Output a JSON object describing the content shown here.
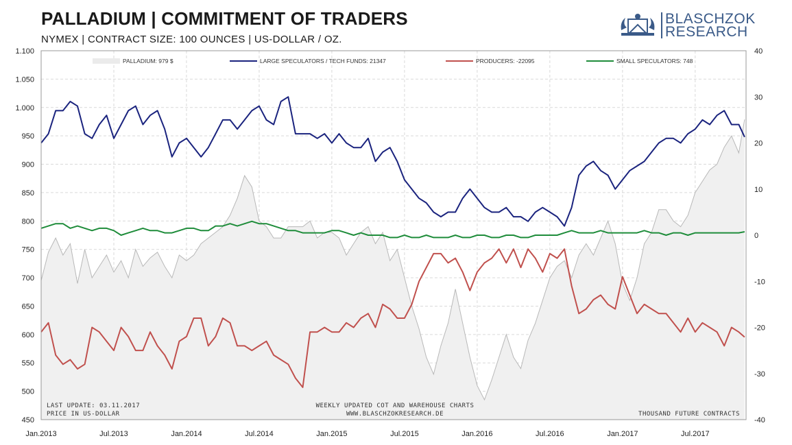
{
  "header": {
    "title": "PALLADIUM  | COMMITMENT OF TRADERS",
    "subtitle": "NYMEX  |  CONTRACT SIZE: 100 OUNCES  |  US-DOLLAR / OZ."
  },
  "logo": {
    "line1": "BLASCHZOK",
    "line2": "RESEARCH",
    "color": "#3a5a88"
  },
  "footer": {
    "left_line1": "LAST UPDATE: 03.11.2017",
    "left_line2": "PRICE IN US-DOLLAR",
    "center_line1": "WEEKLY  UPDATED  COT  AND  WAREHOUSE  CHARTS",
    "center_line2": "WWW.BLASCHZOKRESEARCH.DE",
    "right": "THOUSAND  FUTURE CONTRACTS"
  },
  "chart_data": {
    "type": "line",
    "x_ticks": [
      "Jan.2013",
      "Jul.2013",
      "Jan.2014",
      "Jul.2014",
      "Jan.2015",
      "Jul.2015",
      "Jan.2016",
      "Jul.2016",
      "Jan.2017",
      "Jul.2017"
    ],
    "y_left": {
      "min": 450,
      "max": 1100,
      "ticks": [
        "1.100",
        "1.050",
        "1.000",
        "950",
        "900",
        "850",
        "800",
        "750",
        "700",
        "650",
        "600",
        "550",
        "500",
        "450"
      ]
    },
    "y_right": {
      "min": -40,
      "max": 40,
      "ticks": [
        "40",
        "30",
        "20",
        "10",
        "0",
        "-10",
        "-20",
        "-30",
        "-40"
      ]
    },
    "grid": true,
    "legend_position": "top",
    "series": [
      {
        "name": "PALLADIUM: 979 $",
        "axis": "left",
        "style": "area",
        "color": "#f0f0f0",
        "stroke": "#b8b8b8",
        "t": [
          2013.0,
          2013.05,
          2013.1,
          2013.15,
          2013.2,
          2013.25,
          2013.3,
          2013.35,
          2013.4,
          2013.45,
          2013.5,
          2013.55,
          2013.6,
          2013.65,
          2013.7,
          2013.75,
          2013.8,
          2013.85,
          2013.9,
          2013.95,
          2014.0,
          2014.05,
          2014.1,
          2014.15,
          2014.2,
          2014.25,
          2014.3,
          2014.35,
          2014.4,
          2014.45,
          2014.5,
          2014.55,
          2014.6,
          2014.65,
          2014.7,
          2014.75,
          2014.8,
          2014.85,
          2014.9,
          2014.95,
          2015.0,
          2015.05,
          2015.1,
          2015.15,
          2015.2,
          2015.25,
          2015.3,
          2015.35,
          2015.4,
          2015.45,
          2015.5,
          2015.55,
          2015.6,
          2015.65,
          2015.7,
          2015.75,
          2015.8,
          2015.85,
          2015.9,
          2015.95,
          2016.0,
          2016.05,
          2016.1,
          2016.15,
          2016.2,
          2016.25,
          2016.3,
          2016.35,
          2016.4,
          2016.45,
          2016.5,
          2016.55,
          2016.6,
          2016.65,
          2016.7,
          2016.75,
          2016.8,
          2016.85,
          2016.9,
          2016.95,
          2017.0,
          2017.05,
          2017.1,
          2017.15,
          2017.2,
          2017.25,
          2017.3,
          2017.35,
          2017.4,
          2017.45,
          2017.5,
          2017.55,
          2017.6,
          2017.65,
          2017.7,
          2017.75,
          2017.8,
          2017.84
        ],
        "values": [
          695,
          745,
          770,
          740,
          760,
          690,
          750,
          700,
          720,
          740,
          710,
          730,
          700,
          750,
          720,
          735,
          745,
          720,
          700,
          740,
          730,
          740,
          760,
          770,
          780,
          790,
          810,
          840,
          880,
          860,
          800,
          790,
          770,
          770,
          790,
          790,
          790,
          800,
          770,
          780,
          780,
          770,
          740,
          760,
          780,
          790,
          760,
          780,
          730,
          750,
          700,
          650,
          610,
          560,
          530,
          580,
          620,
          680,
          620,
          560,
          510,
          485,
          520,
          560,
          600,
          560,
          540,
          590,
          620,
          660,
          700,
          720,
          730,
          700,
          740,
          760,
          740,
          770,
          800,
          760,
          690,
          660,
          700,
          760,
          780,
          820,
          820,
          800,
          790,
          810,
          850,
          870,
          890,
          900,
          930,
          950,
          920,
          979
        ]
      },
      {
        "name": "LARGE SPECULATORS / TECH FUNDS:  21347",
        "axis": "right",
        "style": "line",
        "color": "#1a237e",
        "t": [
          2013.0,
          2013.05,
          2013.1,
          2013.15,
          2013.2,
          2013.25,
          2013.3,
          2013.35,
          2013.4,
          2013.45,
          2013.5,
          2013.55,
          2013.6,
          2013.65,
          2013.7,
          2013.75,
          2013.8,
          2013.85,
          2013.9,
          2013.95,
          2014.0,
          2014.05,
          2014.1,
          2014.15,
          2014.2,
          2014.25,
          2014.3,
          2014.35,
          2014.4,
          2014.45,
          2014.5,
          2014.55,
          2014.6,
          2014.65,
          2014.7,
          2014.75,
          2014.8,
          2014.85,
          2014.9,
          2014.95,
          2015.0,
          2015.05,
          2015.1,
          2015.15,
          2015.2,
          2015.25,
          2015.3,
          2015.35,
          2015.4,
          2015.45,
          2015.5,
          2015.55,
          2015.6,
          2015.65,
          2015.7,
          2015.75,
          2015.8,
          2015.85,
          2015.9,
          2015.95,
          2016.0,
          2016.05,
          2016.1,
          2016.15,
          2016.2,
          2016.25,
          2016.3,
          2016.35,
          2016.4,
          2016.45,
          2016.5,
          2016.55,
          2016.6,
          2016.65,
          2016.7,
          2016.75,
          2016.8,
          2016.85,
          2016.9,
          2016.95,
          2017.0,
          2017.05,
          2017.1,
          2017.15,
          2017.2,
          2017.25,
          2017.3,
          2017.35,
          2017.4,
          2017.45,
          2017.5,
          2017.55,
          2017.6,
          2017.65,
          2017.7,
          2017.75,
          2017.8,
          2017.84
        ],
        "values": [
          20,
          22,
          27,
          27,
          29,
          28,
          22,
          21,
          24,
          26,
          21,
          24,
          27,
          28,
          24,
          26,
          27,
          23,
          17,
          20,
          21,
          19,
          17,
          19,
          22,
          25,
          25,
          23,
          25,
          27,
          28,
          25,
          24,
          29,
          30,
          22,
          22,
          22,
          21,
          22,
          20,
          22,
          20,
          19,
          19,
          21,
          16,
          18,
          19,
          16,
          12,
          10,
          8,
          7,
          5,
          4,
          5,
          5,
          8,
          10,
          8,
          6,
          5,
          5,
          6,
          4,
          4,
          3,
          5,
          6,
          5,
          4,
          2,
          6,
          13,
          15,
          16,
          14,
          13,
          10,
          12,
          14,
          15,
          16,
          18,
          20,
          21,
          21,
          20,
          22,
          23,
          25,
          24,
          26,
          27,
          24,
          24,
          21.3
        ]
      },
      {
        "name": "PRODUCERS: -22095",
        "axis": "right",
        "style": "line",
        "color": "#c0504d",
        "t": [
          2013.0,
          2013.05,
          2013.1,
          2013.15,
          2013.2,
          2013.25,
          2013.3,
          2013.35,
          2013.4,
          2013.45,
          2013.5,
          2013.55,
          2013.6,
          2013.65,
          2013.7,
          2013.75,
          2013.8,
          2013.85,
          2013.9,
          2013.95,
          2014.0,
          2014.05,
          2014.1,
          2014.15,
          2014.2,
          2014.25,
          2014.3,
          2014.35,
          2014.4,
          2014.45,
          2014.5,
          2014.55,
          2014.6,
          2014.65,
          2014.7,
          2014.75,
          2014.8,
          2014.85,
          2014.9,
          2014.95,
          2015.0,
          2015.05,
          2015.1,
          2015.15,
          2015.2,
          2015.25,
          2015.3,
          2015.35,
          2015.4,
          2015.45,
          2015.5,
          2015.55,
          2015.6,
          2015.65,
          2015.7,
          2015.75,
          2015.8,
          2015.85,
          2015.9,
          2015.95,
          2016.0,
          2016.05,
          2016.1,
          2016.15,
          2016.2,
          2016.25,
          2016.3,
          2016.35,
          2016.4,
          2016.45,
          2016.5,
          2016.55,
          2016.6,
          2016.65,
          2016.7,
          2016.75,
          2016.8,
          2016.85,
          2016.9,
          2016.95,
          2017.0,
          2017.05,
          2017.1,
          2017.15,
          2017.2,
          2017.25,
          2017.3,
          2017.35,
          2017.4,
          2017.45,
          2017.5,
          2017.55,
          2017.6,
          2017.65,
          2017.7,
          2017.75,
          2017.8,
          2017.84
        ],
        "values": [
          -21,
          -19,
          -26,
          -28,
          -27,
          -29,
          -28,
          -20,
          -21,
          -23,
          -25,
          -20,
          -22,
          -25,
          -25,
          -21,
          -24,
          -26,
          -29,
          -23,
          -22,
          -18,
          -18,
          -24,
          -22,
          -18,
          -19,
          -24,
          -24,
          -25,
          -24,
          -23,
          -26,
          -27,
          -28,
          -31,
          -33,
          -21,
          -21,
          -20,
          -21,
          -21,
          -19,
          -20,
          -18,
          -17,
          -20,
          -15,
          -16,
          -18,
          -18,
          -15,
          -10,
          -7,
          -4,
          -4,
          -6,
          -5,
          -8,
          -12,
          -8,
          -6,
          -5,
          -3,
          -6,
          -3,
          -7,
          -3,
          -5,
          -8,
          -4,
          -5,
          -3,
          -11,
          -17,
          -16,
          -14,
          -13,
          -15,
          -16,
          -9,
          -13,
          -17,
          -15,
          -16,
          -17,
          -17,
          -19,
          -21,
          -18,
          -21,
          -19,
          -20,
          -21,
          -24,
          -20,
          -21,
          -22.1
        ]
      },
      {
        "name": "SMALL SPECULATORS: 748",
        "axis": "right",
        "style": "line",
        "color": "#1e8c3a",
        "t": [
          2013.0,
          2013.05,
          2013.1,
          2013.15,
          2013.2,
          2013.25,
          2013.3,
          2013.35,
          2013.4,
          2013.45,
          2013.5,
          2013.55,
          2013.6,
          2013.65,
          2013.7,
          2013.75,
          2013.8,
          2013.85,
          2013.9,
          2013.95,
          2014.0,
          2014.05,
          2014.1,
          2014.15,
          2014.2,
          2014.25,
          2014.3,
          2014.35,
          2014.4,
          2014.45,
          2014.5,
          2014.55,
          2014.6,
          2014.65,
          2014.7,
          2014.75,
          2014.8,
          2014.85,
          2014.9,
          2014.95,
          2015.0,
          2015.05,
          2015.1,
          2015.15,
          2015.2,
          2015.25,
          2015.3,
          2015.35,
          2015.4,
          2015.45,
          2015.5,
          2015.55,
          2015.6,
          2015.65,
          2015.7,
          2015.75,
          2015.8,
          2015.85,
          2015.9,
          2015.95,
          2016.0,
          2016.05,
          2016.1,
          2016.15,
          2016.2,
          2016.25,
          2016.3,
          2016.35,
          2016.4,
          2016.45,
          2016.5,
          2016.55,
          2016.6,
          2016.65,
          2016.7,
          2016.75,
          2016.8,
          2016.85,
          2016.9,
          2016.95,
          2017.0,
          2017.05,
          2017.1,
          2017.15,
          2017.2,
          2017.25,
          2017.3,
          2017.35,
          2017.4,
          2017.45,
          2017.5,
          2017.55,
          2017.6,
          2017.65,
          2017.7,
          2017.75,
          2017.8,
          2017.84
        ],
        "values": [
          1.5,
          2,
          2.5,
          2.5,
          1.5,
          2,
          1.5,
          1,
          1.5,
          1.5,
          1,
          0,
          0.5,
          1,
          1.5,
          1,
          1,
          0.5,
          0.5,
          1,
          1.5,
          1.5,
          1,
          1,
          2,
          2,
          2.5,
          2,
          2.5,
          3,
          2.5,
          2.5,
          2,
          1.5,
          1,
          1,
          0.5,
          0.5,
          0.5,
          0.5,
          1,
          1,
          0.5,
          0,
          0.5,
          0,
          0,
          0,
          -0.5,
          -0.5,
          0,
          -0.5,
          -0.5,
          0,
          -0.5,
          -0.5,
          -0.5,
          0,
          -0.5,
          -0.5,
          0,
          0,
          -0.5,
          -0.5,
          0,
          0,
          -0.5,
          -0.5,
          0,
          0,
          0,
          0,
          0.5,
          1,
          0.5,
          0.5,
          0.5,
          1,
          0.5,
          0.5,
          0.5,
          0.5,
          0.5,
          1,
          0.5,
          0.5,
          0,
          0.5,
          0.5,
          0,
          0.5,
          0.5,
          0.5,
          0.5,
          0.5,
          0.5,
          0.5,
          0.75
        ]
      }
    ]
  }
}
